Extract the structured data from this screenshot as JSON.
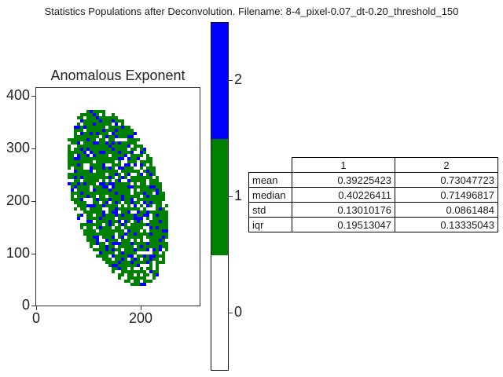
{
  "figure": {
    "title": "Statistics Populations after Deconvolution. Filename: 8-4_pixel-0.07_dt-0.20_threshold_150"
  },
  "chart_data": [
    {
      "type": "heatmap",
      "title": "Anomalous Exponent",
      "xlabel": "",
      "ylabel": "",
      "xlim": [
        0,
        300
      ],
      "ylim": [
        0,
        415
      ],
      "x_ticks": [
        "0",
        "200"
      ],
      "y_ticks": [
        "0",
        "100",
        "200",
        "300",
        "400"
      ],
      "region": {
        "shape": "tilted ellipse",
        "center": [
          150,
          207
        ],
        "semi_axes": [
          83,
          175
        ],
        "tilt_deg": -18
      },
      "colors": {
        "0": "#ffffff",
        "1": "#008000",
        "2": "#0000ff"
      },
      "colorbar": {
        "ticks": [
          "0",
          "1",
          "2"
        ],
        "range": [
          -0.5,
          2.5
        ],
        "colors": [
          "#ffffff",
          "#008000",
          "#0000ff"
        ]
      }
    },
    {
      "type": "table",
      "columns": [
        "1",
        "2"
      ],
      "rows": [
        {
          "label": "mean",
          "values": [
            "0.39225423",
            "0.73047723"
          ]
        },
        {
          "label": "median",
          "values": [
            "0.40226411",
            "0.71496817"
          ]
        },
        {
          "label": "std",
          "values": [
            "0.13010176",
            "0.0861484"
          ]
        },
        {
          "label": "iqr",
          "values": [
            "0.19513047",
            "0.13335043"
          ]
        }
      ]
    }
  ]
}
